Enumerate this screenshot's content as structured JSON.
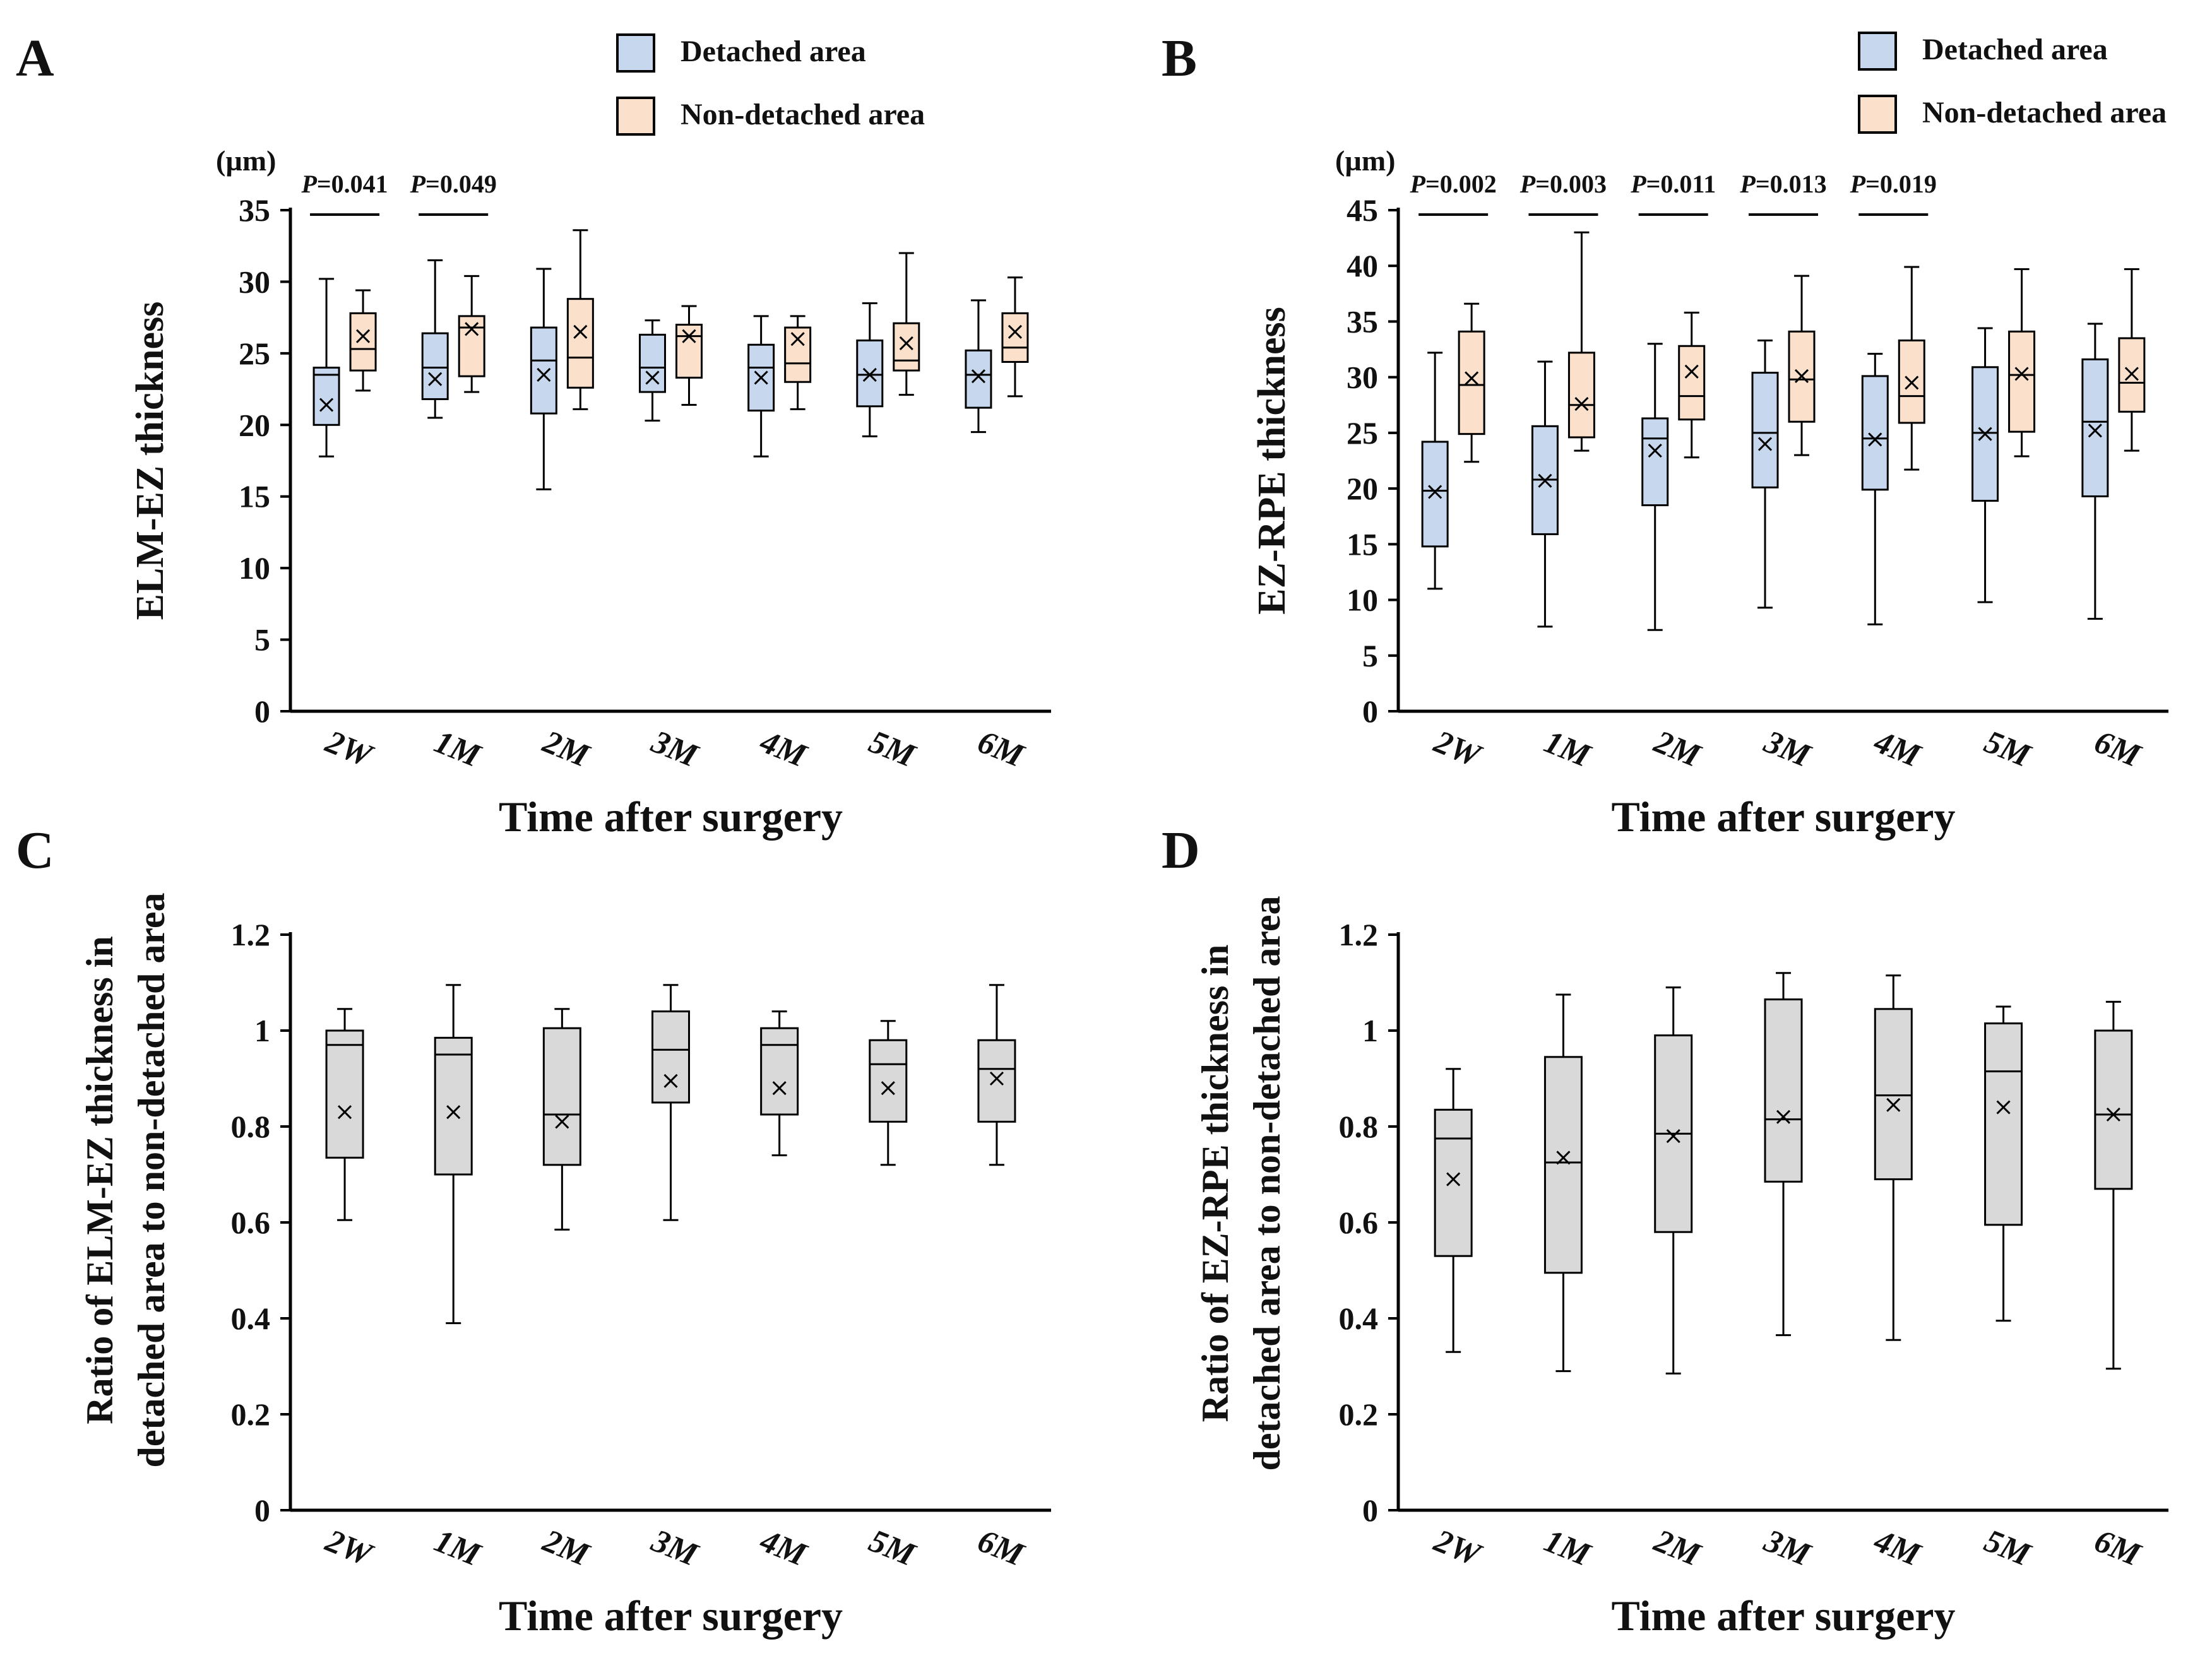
{
  "chart_data": [
    {
      "panel": "A",
      "type": "box",
      "ylabel": "ELM-EZ thickness",
      "unit": "(µm)",
      "xlabel": "Time after surgery",
      "categories": [
        "2W",
        "1M",
        "2M",
        "3M",
        "4M",
        "5M",
        "6M"
      ],
      "ylim": [
        0,
        35
      ],
      "yticks": [
        0,
        5,
        10,
        15,
        20,
        25,
        30,
        35
      ],
      "legend": [
        "Detached area",
        "Non-detached area"
      ],
      "pvalues": [
        {
          "category": "2W",
          "italic": "P",
          "text": "=0.041"
        },
        {
          "category": "1M",
          "italic": "P",
          "text": "=0.049"
        }
      ],
      "series": [
        {
          "name": "Detached area",
          "color": "#c7d8ee",
          "boxes": [
            {
              "min": 17.8,
              "q1": 20.0,
              "median": 23.5,
              "q3": 24.0,
              "max": 30.2,
              "mean": 21.4
            },
            {
              "min": 20.5,
              "q1": 21.8,
              "median": 24.0,
              "q3": 26.4,
              "max": 31.5,
              "mean": 23.2
            },
            {
              "min": 15.5,
              "q1": 20.8,
              "median": 24.5,
              "q3": 26.8,
              "max": 30.9,
              "mean": 23.5
            },
            {
              "min": 20.3,
              "q1": 22.3,
              "median": 24.0,
              "q3": 26.3,
              "max": 27.3,
              "mean": 23.3
            },
            {
              "min": 17.8,
              "q1": 21.0,
              "median": 24.0,
              "q3": 25.6,
              "max": 27.6,
              "mean": 23.3
            },
            {
              "min": 19.2,
              "q1": 21.3,
              "median": 23.5,
              "q3": 25.9,
              "max": 28.5,
              "mean": 23.5
            },
            {
              "min": 19.5,
              "q1": 21.2,
              "median": 23.5,
              "q3": 25.2,
              "max": 28.7,
              "mean": 23.4
            }
          ]
        },
        {
          "name": "Non-detached area",
          "color": "#fbe0cb",
          "boxes": [
            {
              "min": 22.4,
              "q1": 23.8,
              "median": 25.3,
              "q3": 27.8,
              "max": 29.4,
              "mean": 26.2
            },
            {
              "min": 22.3,
              "q1": 23.4,
              "median": 26.8,
              "q3": 27.6,
              "max": 30.4,
              "mean": 26.7
            },
            {
              "min": 21.1,
              "q1": 22.6,
              "median": 24.7,
              "q3": 28.8,
              "max": 33.6,
              "mean": 26.5
            },
            {
              "min": 21.4,
              "q1": 23.3,
              "median": 26.2,
              "q3": 27.0,
              "max": 28.3,
              "mean": 26.2
            },
            {
              "min": 21.1,
              "q1": 23.0,
              "median": 24.3,
              "q3": 26.8,
              "max": 27.6,
              "mean": 26.0
            },
            {
              "min": 22.1,
              "q1": 23.8,
              "median": 24.5,
              "q3": 27.1,
              "max": 32.0,
              "mean": 25.7
            },
            {
              "min": 22.0,
              "q1": 24.4,
              "median": 25.4,
              "q3": 27.8,
              "max": 30.3,
              "mean": 26.5
            }
          ]
        }
      ]
    },
    {
      "panel": "B",
      "type": "box",
      "ylabel": "EZ-RPE thickness",
      "unit": "(µm)",
      "xlabel": "Time after surgery",
      "categories": [
        "2W",
        "1M",
        "2M",
        "3M",
        "4M",
        "5M",
        "6M"
      ],
      "ylim": [
        0,
        45
      ],
      "yticks": [
        0,
        5,
        10,
        15,
        20,
        25,
        30,
        35,
        40,
        45
      ],
      "legend": [
        "Detached area",
        "Non-detached area"
      ],
      "pvalues": [
        {
          "category": "2W",
          "italic": "P",
          "text": "=0.002"
        },
        {
          "category": "1M",
          "italic": "P",
          "text": "=0.003"
        },
        {
          "category": "2M",
          "italic": "P",
          "text": "=0.011"
        },
        {
          "category": "3M",
          "italic": "P",
          "text": "=0.013"
        },
        {
          "category": "4M",
          "italic": "P",
          "text": "=0.019"
        }
      ],
      "series": [
        {
          "name": "Detached area",
          "color": "#c7d8ee",
          "boxes": [
            {
              "min": 11.0,
              "q1": 14.8,
              "median": 19.8,
              "q3": 24.2,
              "max": 32.2,
              "mean": 19.7
            },
            {
              "min": 7.6,
              "q1": 15.9,
              "median": 20.8,
              "q3": 25.6,
              "max": 31.4,
              "mean": 20.7
            },
            {
              "min": 7.3,
              "q1": 18.5,
              "median": 24.5,
              "q3": 26.3,
              "max": 33.0,
              "mean": 23.4
            },
            {
              "min": 9.3,
              "q1": 20.1,
              "median": 25.0,
              "q3": 30.4,
              "max": 33.3,
              "mean": 24.0
            },
            {
              "min": 7.8,
              "q1": 19.9,
              "median": 24.5,
              "q3": 30.1,
              "max": 32.1,
              "mean": 24.4
            },
            {
              "min": 9.8,
              "q1": 18.9,
              "median": 25.0,
              "q3": 30.9,
              "max": 34.4,
              "mean": 24.9
            },
            {
              "min": 8.3,
              "q1": 19.3,
              "median": 26.0,
              "q3": 31.6,
              "max": 34.8,
              "mean": 25.2
            }
          ]
        },
        {
          "name": "Non-detached area",
          "color": "#fbe0cb",
          "boxes": [
            {
              "min": 22.4,
              "q1": 24.9,
              "median": 29.3,
              "q3": 34.1,
              "max": 36.6,
              "mean": 29.9
            },
            {
              "min": 23.4,
              "q1": 24.6,
              "median": 27.5,
              "q3": 32.2,
              "max": 43.0,
              "mean": 27.6
            },
            {
              "min": 22.8,
              "q1": 26.2,
              "median": 28.3,
              "q3": 32.8,
              "max": 35.8,
              "mean": 30.5
            },
            {
              "min": 23.0,
              "q1": 26.0,
              "median": 29.8,
              "q3": 34.1,
              "max": 39.1,
              "mean": 30.1
            },
            {
              "min": 21.7,
              "q1": 25.9,
              "median": 28.3,
              "q3": 33.3,
              "max": 39.9,
              "mean": 29.5
            },
            {
              "min": 22.9,
              "q1": 25.1,
              "median": 30.2,
              "q3": 34.1,
              "max": 39.7,
              "mean": 30.3
            },
            {
              "min": 23.4,
              "q1": 26.9,
              "median": 29.5,
              "q3": 33.5,
              "max": 39.7,
              "mean": 30.3
            }
          ]
        }
      ]
    },
    {
      "panel": "C",
      "type": "box",
      "ylabel_lines": [
        "Ratio of ELM-EZ thickness in",
        "detached area to non-detached area"
      ],
      "xlabel": "Time after surgery",
      "categories": [
        "2W",
        "1M",
        "2M",
        "3M",
        "4M",
        "5M",
        "6M"
      ],
      "ylim": [
        0,
        1.2
      ],
      "yticks": [
        0,
        0.2,
        0.4,
        0.6,
        0.8,
        1,
        1.2
      ],
      "ytick_labels": [
        "0",
        "0.2",
        "0.4",
        "0.6",
        "0.8",
        "1",
        "1.2"
      ],
      "series": [
        {
          "name": "Ratio",
          "color": "#d9d9d9",
          "boxes": [
            {
              "min": 0.605,
              "q1": 0.735,
              "median": 0.97,
              "q3": 1.0,
              "max": 1.045,
              "mean": 0.83
            },
            {
              "min": 0.39,
              "q1": 0.7,
              "median": 0.95,
              "q3": 0.985,
              "max": 1.095,
              "mean": 0.83
            },
            {
              "min": 0.585,
              "q1": 0.72,
              "median": 0.825,
              "q3": 1.005,
              "max": 1.045,
              "mean": 0.81
            },
            {
              "min": 0.605,
              "q1": 0.85,
              "median": 0.96,
              "q3": 1.04,
              "max": 1.095,
              "mean": 0.895
            },
            {
              "min": 0.74,
              "q1": 0.825,
              "median": 0.97,
              "q3": 1.005,
              "max": 1.04,
              "mean": 0.88
            },
            {
              "min": 0.72,
              "q1": 0.81,
              "median": 0.93,
              "q3": 0.98,
              "max": 1.02,
              "mean": 0.88
            },
            {
              "min": 0.72,
              "q1": 0.81,
              "median": 0.92,
              "q3": 0.98,
              "max": 1.095,
              "mean": 0.9
            }
          ]
        }
      ]
    },
    {
      "panel": "D",
      "type": "box",
      "ylabel_lines": [
        "Ratio of EZ-RPE thickness in",
        "detached area to non-detached area"
      ],
      "xlabel": "Time after surgery",
      "categories": [
        "2W",
        "1M",
        "2M",
        "3M",
        "4M",
        "5M",
        "6M"
      ],
      "ylim": [
        0,
        1.2
      ],
      "yticks": [
        0,
        0.2,
        0.4,
        0.6,
        0.8,
        1,
        1.2
      ],
      "ytick_labels": [
        "0",
        "0.2",
        "0.4",
        "0.6",
        "0.8",
        "1",
        "1.2"
      ],
      "series": [
        {
          "name": "Ratio",
          "color": "#d9d9d9",
          "boxes": [
            {
              "min": 0.33,
              "q1": 0.53,
              "median": 0.775,
              "q3": 0.835,
              "max": 0.92,
              "mean": 0.69
            },
            {
              "min": 0.29,
              "q1": 0.495,
              "median": 0.725,
              "q3": 0.945,
              "max": 1.075,
              "mean": 0.735
            },
            {
              "min": 0.285,
              "q1": 0.58,
              "median": 0.785,
              "q3": 0.99,
              "max": 1.09,
              "mean": 0.78
            },
            {
              "min": 0.365,
              "q1": 0.685,
              "median": 0.815,
              "q3": 1.065,
              "max": 1.12,
              "mean": 0.82
            },
            {
              "min": 0.355,
              "q1": 0.69,
              "median": 0.865,
              "q3": 1.045,
              "max": 1.115,
              "mean": 0.845
            },
            {
              "min": 0.395,
              "q1": 0.595,
              "median": 0.915,
              "q3": 1.015,
              "max": 1.05,
              "mean": 0.84
            },
            {
              "min": 0.295,
              "q1": 0.67,
              "median": 0.825,
              "q3": 1.0,
              "max": 1.06,
              "mean": 0.825
            }
          ]
        }
      ]
    }
  ]
}
